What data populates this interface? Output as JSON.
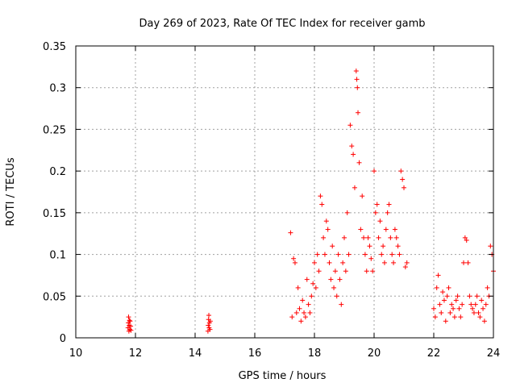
{
  "chart_data": {
    "type": "scatter",
    "title": "Day 269 of 2023, Rate Of TEC Index for receiver gamb",
    "xlabel": "GPS time / hours",
    "ylabel": "ROTI / TECUs",
    "xlim": [
      10,
      24
    ],
    "ylim": [
      0,
      0.35
    ],
    "x_ticks": [
      10,
      12,
      14,
      16,
      18,
      20,
      22,
      24
    ],
    "x_tick_labels": [
      "10",
      "12",
      "14",
      "16",
      "18",
      "20",
      "22",
      "24"
    ],
    "y_ticks": [
      0,
      0.05,
      0.1,
      0.15,
      0.2,
      0.25,
      0.3,
      0.35
    ],
    "y_tick_labels": [
      "0",
      "0.05",
      "0.1",
      "0.15",
      "0.2",
      "0.25",
      "0.3",
      "0.35"
    ],
    "grid": true,
    "marker": "+",
    "color": "#ff0000",
    "series": [
      {
        "x": [
          11.75,
          11.76,
          11.77,
          11.78,
          11.79,
          11.8,
          11.81,
          11.82,
          11.84,
          11.85,
          14.43,
          14.44,
          14.45,
          14.46,
          14.47,
          14.48,
          14.5,
          14.51,
          17.2,
          17.25,
          17.3,
          17.35,
          17.4,
          17.45,
          17.5,
          17.55,
          17.6,
          17.65,
          17.7,
          17.75,
          17.8,
          17.85,
          17.9,
          17.95,
          18.0,
          18.05,
          18.1,
          18.15,
          18.2,
          18.25,
          18.3,
          18.35,
          18.4,
          18.45,
          18.5,
          18.55,
          18.6,
          18.65,
          18.7,
          18.75,
          18.8,
          18.85,
          18.9,
          18.95,
          19.0,
          19.05,
          19.1,
          19.15,
          19.2,
          19.25,
          19.3,
          19.35,
          19.4,
          19.42,
          19.44,
          19.46,
          19.5,
          19.55,
          19.6,
          19.65,
          19.7,
          19.75,
          19.8,
          19.85,
          19.9,
          19.95,
          20.0,
          20.05,
          20.1,
          20.15,
          20.2,
          20.25,
          20.3,
          20.35,
          20.4,
          20.45,
          20.5,
          20.55,
          20.6,
          20.65,
          20.7,
          20.75,
          20.8,
          20.85,
          20.9,
          20.95,
          21.0,
          21.05,
          21.1,
          22.0,
          22.05,
          22.1,
          22.15,
          22.2,
          22.25,
          22.3,
          22.35,
          22.4,
          22.45,
          22.5,
          22.55,
          22.6,
          22.65,
          22.7,
          22.75,
          22.8,
          22.85,
          22.9,
          22.95,
          23.0,
          23.05,
          23.1,
          23.15,
          23.2,
          23.25,
          23.3,
          23.35,
          23.4,
          23.45,
          23.5,
          23.55,
          23.6,
          23.65,
          23.7,
          23.75,
          23.8,
          23.85,
          23.9,
          23.95,
          24.0
        ],
        "y": [
          0.012,
          0.018,
          0.025,
          0.008,
          0.015,
          0.021,
          0.01,
          0.02,
          0.014,
          0.009,
          0.008,
          0.015,
          0.022,
          0.027,
          0.012,
          0.018,
          0.01,
          0.02,
          0.126,
          0.025,
          0.095,
          0.09,
          0.03,
          0.06,
          0.035,
          0.02,
          0.045,
          0.03,
          0.025,
          0.07,
          0.04,
          0.03,
          0.05,
          0.065,
          0.09,
          0.06,
          0.1,
          0.08,
          0.17,
          0.16,
          0.12,
          0.1,
          0.14,
          0.13,
          0.09,
          0.07,
          0.11,
          0.06,
          0.08,
          0.05,
          0.1,
          0.07,
          0.04,
          0.09,
          0.12,
          0.08,
          0.15,
          0.1,
          0.255,
          0.23,
          0.22,
          0.18,
          0.32,
          0.31,
          0.3,
          0.27,
          0.21,
          0.13,
          0.17,
          0.12,
          0.1,
          0.08,
          0.12,
          0.11,
          0.095,
          0.08,
          0.2,
          0.15,
          0.16,
          0.12,
          0.14,
          0.1,
          0.11,
          0.09,
          0.13,
          0.15,
          0.16,
          0.12,
          0.1,
          0.09,
          0.13,
          0.12,
          0.11,
          0.1,
          0.2,
          0.19,
          0.18,
          0.085,
          0.09,
          0.035,
          0.025,
          0.06,
          0.075,
          0.04,
          0.03,
          0.055,
          0.045,
          0.02,
          0.05,
          0.06,
          0.03,
          0.04,
          0.035,
          0.025,
          0.045,
          0.05,
          0.035,
          0.025,
          0.04,
          0.09,
          0.12,
          0.117,
          0.09,
          0.05,
          0.04,
          0.035,
          0.03,
          0.04,
          0.05,
          0.03,
          0.025,
          0.045,
          0.035,
          0.02,
          0.04,
          0.06,
          0.05,
          0.11,
          0.1,
          0.08
        ]
      }
    ]
  }
}
